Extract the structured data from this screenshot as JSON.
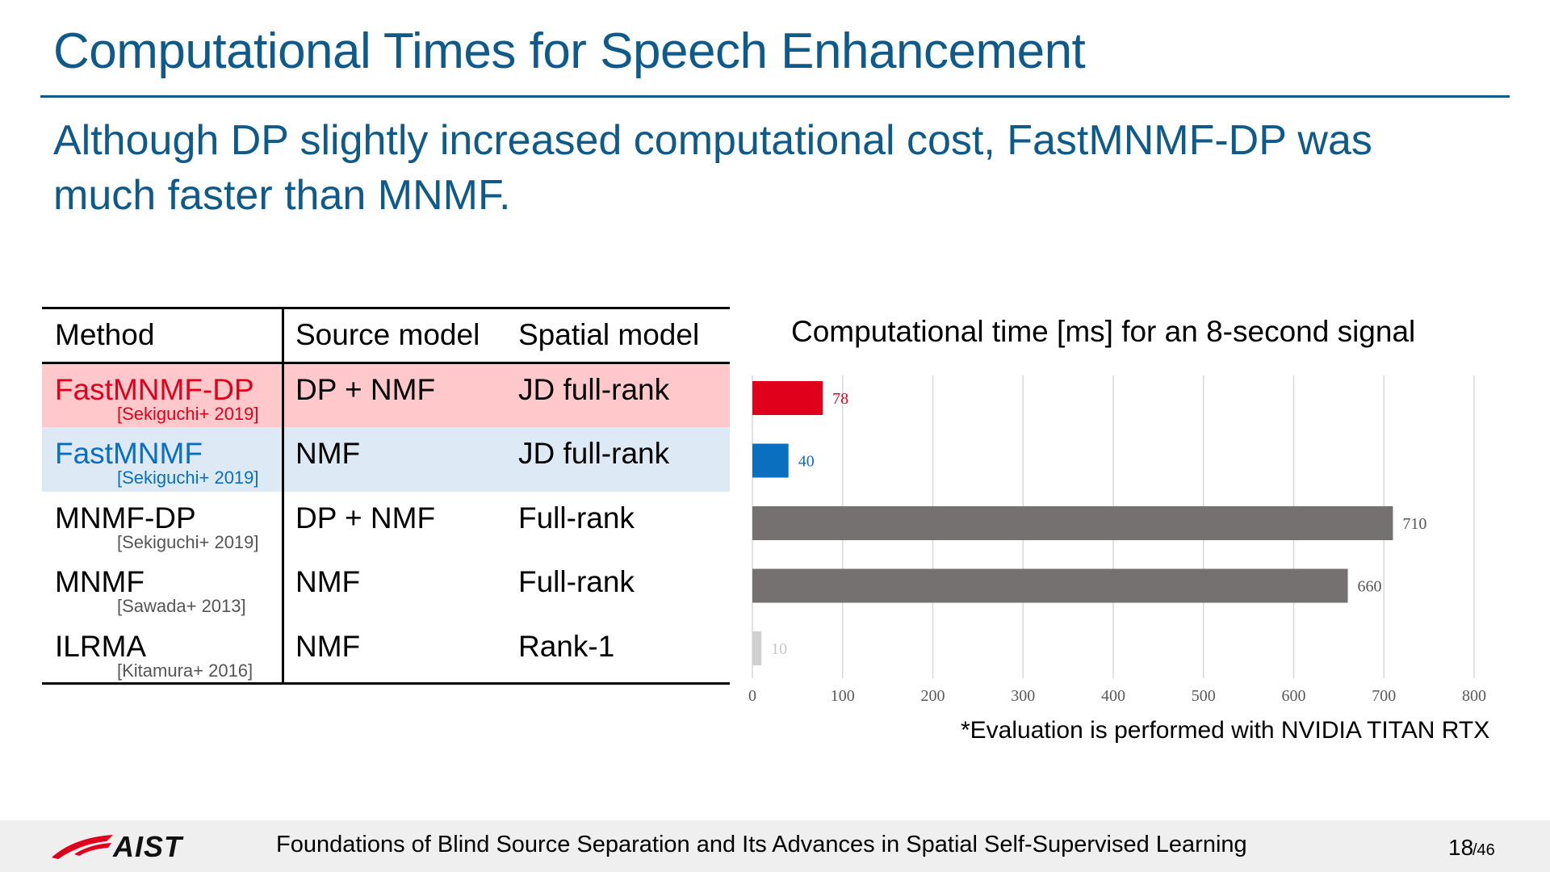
{
  "slide": {
    "title": "Computational Times for Speech Enhancement",
    "subtitle": "Although DP slightly increased computational cost, FastMNMF-DP was much faster than MNMF."
  },
  "table": {
    "headers": [
      "Method",
      "Source model",
      "Spatial model"
    ],
    "rows": [
      {
        "method": "FastMNMF-DP",
        "cite": "[Sekiguchi+ 2019]",
        "source": "DP + NMF",
        "spatial": "JD full-rank",
        "bg": "#ffc9cc",
        "color": "#e0001b"
      },
      {
        "method": "FastMNMF",
        "cite": "[Sekiguchi+ 2019]",
        "source": "NMF",
        "spatial": "JD full-rank",
        "bg": "#dde9f5",
        "color": "#0b6fbf"
      },
      {
        "method": "MNMF-DP",
        "cite": "[Sekiguchi+ 2019]",
        "source": "DP + NMF",
        "spatial": "Full-rank",
        "bg": "#ffffff",
        "color": "#000000"
      },
      {
        "method": "MNMF",
        "cite": "[Sawada+ 2013]",
        "source": "NMF",
        "spatial": "Full-rank",
        "bg": "#ffffff",
        "color": "#000000"
      },
      {
        "method": "ILRMA",
        "cite": "[Kitamura+ 2016]",
        "source": "NMF",
        "spatial": "Rank-1",
        "bg": "#ffffff",
        "color": "#000000"
      }
    ]
  },
  "chart_data": {
    "type": "bar",
    "orientation": "horizontal",
    "title": "Computational time [ms] for an 8-second signal",
    "categories": [
      "FastMNMF-DP",
      "FastMNMF",
      "MNMF-DP",
      "MNMF",
      "ILRMA"
    ],
    "values": [
      78,
      40,
      710,
      660,
      10
    ],
    "bar_colors": [
      "#e0001b",
      "#0b6fbf",
      "#767171",
      "#767171",
      "#d0d0d0"
    ],
    "label_colors": [
      "#e0001b",
      "#0b6fbf",
      "#555555",
      "#555555",
      "#c8c8c8"
    ],
    "xlim": [
      0,
      800
    ],
    "xticks": [
      0,
      100,
      200,
      300,
      400,
      500,
      600,
      700,
      800
    ],
    "grid": true
  },
  "footnote": "*Evaluation is performed with NVIDIA TITAN RTX",
  "footer": {
    "logo": "AIST",
    "text": "Foundations of Blind Source Separation and Its Advances in Spatial Self-Supervised Learning",
    "page": "18",
    "total": "/46"
  }
}
